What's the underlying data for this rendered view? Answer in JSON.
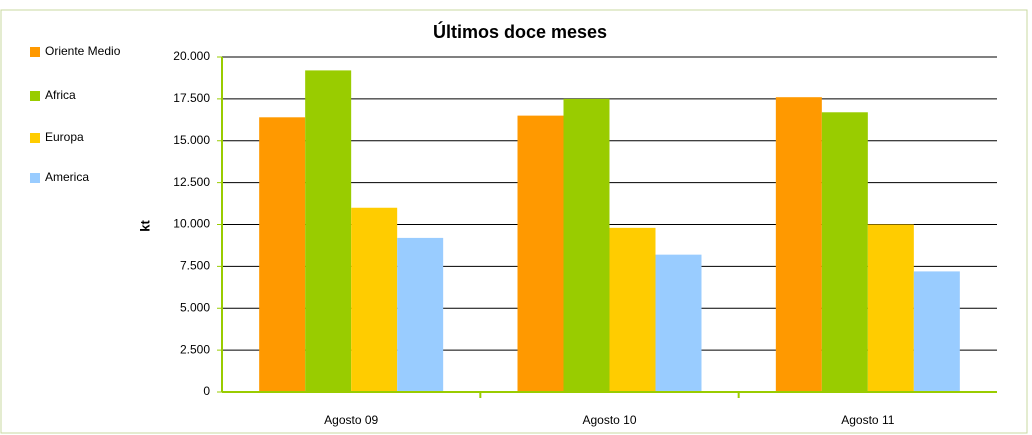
{
  "chart_data": {
    "type": "bar",
    "title": "Últimos doce meses",
    "y_label": "kt",
    "categories": [
      "Agosto 09",
      "Agosto 10",
      "Agosto 11"
    ],
    "series": [
      {
        "name": "Oriente Medio",
        "color": "#ff9900",
        "values": [
          16400,
          16500,
          17600
        ]
      },
      {
        "name": "Africa",
        "color": "#99cc00",
        "values": [
          19200,
          17500,
          16700
        ]
      },
      {
        "name": "Europa",
        "color": "#ffcc00",
        "values": [
          11000,
          9800,
          10000
        ]
      },
      {
        "name": "America",
        "color": "#99ccff",
        "values": [
          9200,
          8200,
          7200
        ]
      }
    ],
    "ylim": [
      0,
      20000
    ],
    "yticks": [
      0,
      {
        "value": 2500,
        "label": "2.500"
      },
      {
        "value": 5000,
        "label": "5.000"
      },
      {
        "value": 7500,
        "label": "7.500"
      },
      {
        "value": 10000,
        "label": "10.000"
      },
      {
        "value": 12500,
        "label": "12.500"
      },
      {
        "value": 15000,
        "label": "15.000"
      },
      {
        "value": 17500,
        "label": "17.500"
      },
      {
        "value": 20000,
        "label": "20.000"
      }
    ],
    "grid": true,
    "legend": "left"
  }
}
